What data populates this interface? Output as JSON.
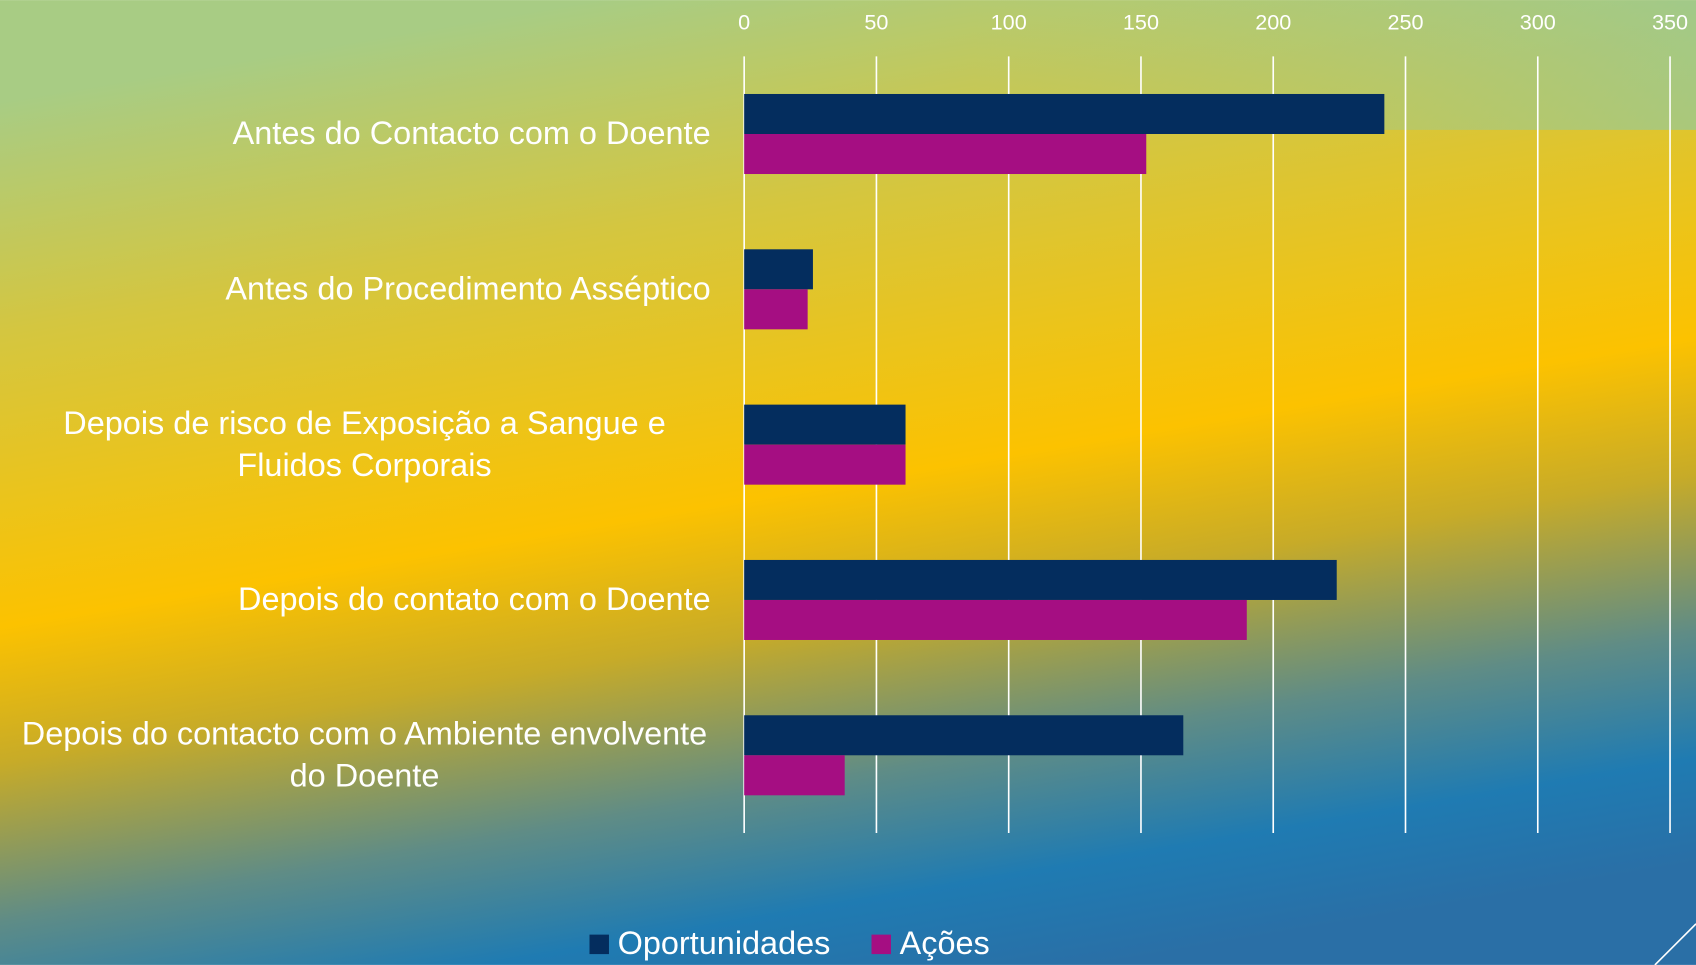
{
  "chart_data": {
    "type": "barh",
    "categories": [
      "Antes do Contacto com o Doente",
      "Antes do Procedimento Asséptico",
      "Depois de risco de Exposição a Sangue e Fluidos Corporais",
      "Depois do contato com o Doente",
      "Depois do contacto com o Ambiente envolvente do Doente"
    ],
    "series": [
      {
        "name": "Oportunidades",
        "color": "#042d5e",
        "values": [
          242,
          26,
          61,
          224,
          166
        ]
      },
      {
        "name": "Ações",
        "color": "#a50e82",
        "values": [
          152,
          24,
          61,
          190,
          38
        ]
      }
    ],
    "xlim": [
      0,
      350
    ],
    "xticks": [
      0,
      50,
      100,
      150,
      200,
      250,
      300,
      350
    ],
    "grid": true,
    "legend": "bottom"
  }
}
